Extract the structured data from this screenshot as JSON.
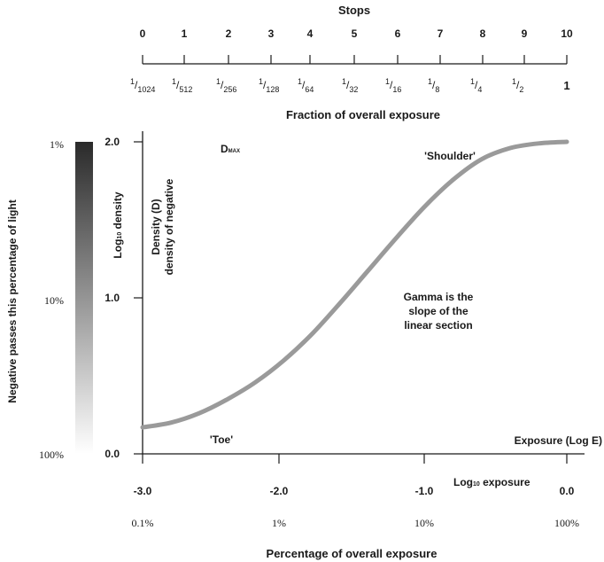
{
  "stops_scale": {
    "title": "Stops",
    "stops": [
      "0",
      "1",
      "2",
      "3",
      "4",
      "5",
      "6",
      "7",
      "8",
      "9",
      "10"
    ],
    "fractions": [
      {
        "num": "1",
        "den": "1024"
      },
      {
        "num": "1",
        "den": "512"
      },
      {
        "num": "1",
        "den": "256"
      },
      {
        "num": "1",
        "den": "128"
      },
      {
        "num": "1",
        "den": "64"
      },
      {
        "num": "1",
        "den": "32"
      },
      {
        "num": "1",
        "den": "16"
      },
      {
        "num": "1",
        "den": "8"
      },
      {
        "num": "1",
        "den": "4"
      },
      {
        "num": "1",
        "den": "2"
      },
      {
        "num": "1",
        "den": ""
      }
    ],
    "caption": "Fraction of overall exposure"
  },
  "grey_bar": {
    "label": "Negative passes this percentage of light",
    "ticks": [
      "1%",
      "10%",
      "100%"
    ],
    "color_top": "#2a2a2a",
    "color_bottom": "#ffffff"
  },
  "chart_data": {
    "type": "line",
    "xlabel": "Log10 exposure",
    "xlabel_main": "Log",
    "xlabel_sub": "10",
    "xlabel_rest": " exposure",
    "ylabel_main": "Log",
    "ylabel_sub": "10",
    "ylabel_rest": " density",
    "xlim": [
      -3.0,
      0.0
    ],
    "ylim": [
      0.0,
      2.0
    ],
    "x_ticks": [
      "-3.0",
      "-2.0",
      "-1.0",
      "0.0"
    ],
    "x_tick_values": [
      -3.0,
      -2.0,
      -1.0,
      0.0
    ],
    "y_ticks": [
      "0.0",
      "1.0",
      "2.0"
    ],
    "y_tick_values": [
      0.0,
      1.0,
      2.0
    ],
    "pct_ticks": [
      "0.1%",
      "1%",
      "10%",
      "100%"
    ],
    "pct_caption": "Percentage of overall exposure",
    "axis_end_label": "Exposure (Log E)",
    "curve_color": "#9a9a9a",
    "series": [
      {
        "x": [
          -3.0,
          -2.8,
          -2.6,
          -2.4,
          -2.2,
          -2.0,
          -1.8,
          -1.6,
          -1.4,
          -1.2,
          -1.0,
          -0.8,
          -0.6,
          -0.4,
          -0.2,
          0.0
        ],
        "y": [
          0.17,
          0.2,
          0.26,
          0.35,
          0.46,
          0.6,
          0.77,
          0.97,
          1.18,
          1.39,
          1.59,
          1.76,
          1.89,
          1.96,
          1.99,
          2.0
        ]
      }
    ],
    "annotations": {
      "dmax_main": "D",
      "dmax_sub": "MAX",
      "shoulder": "'Shoulder'",
      "toe": "'Toe'",
      "gamma": [
        "Gamma is the",
        "slope of the",
        "linear section"
      ],
      "density_line1": "Density (D)",
      "density_line2": "density of negative"
    }
  }
}
